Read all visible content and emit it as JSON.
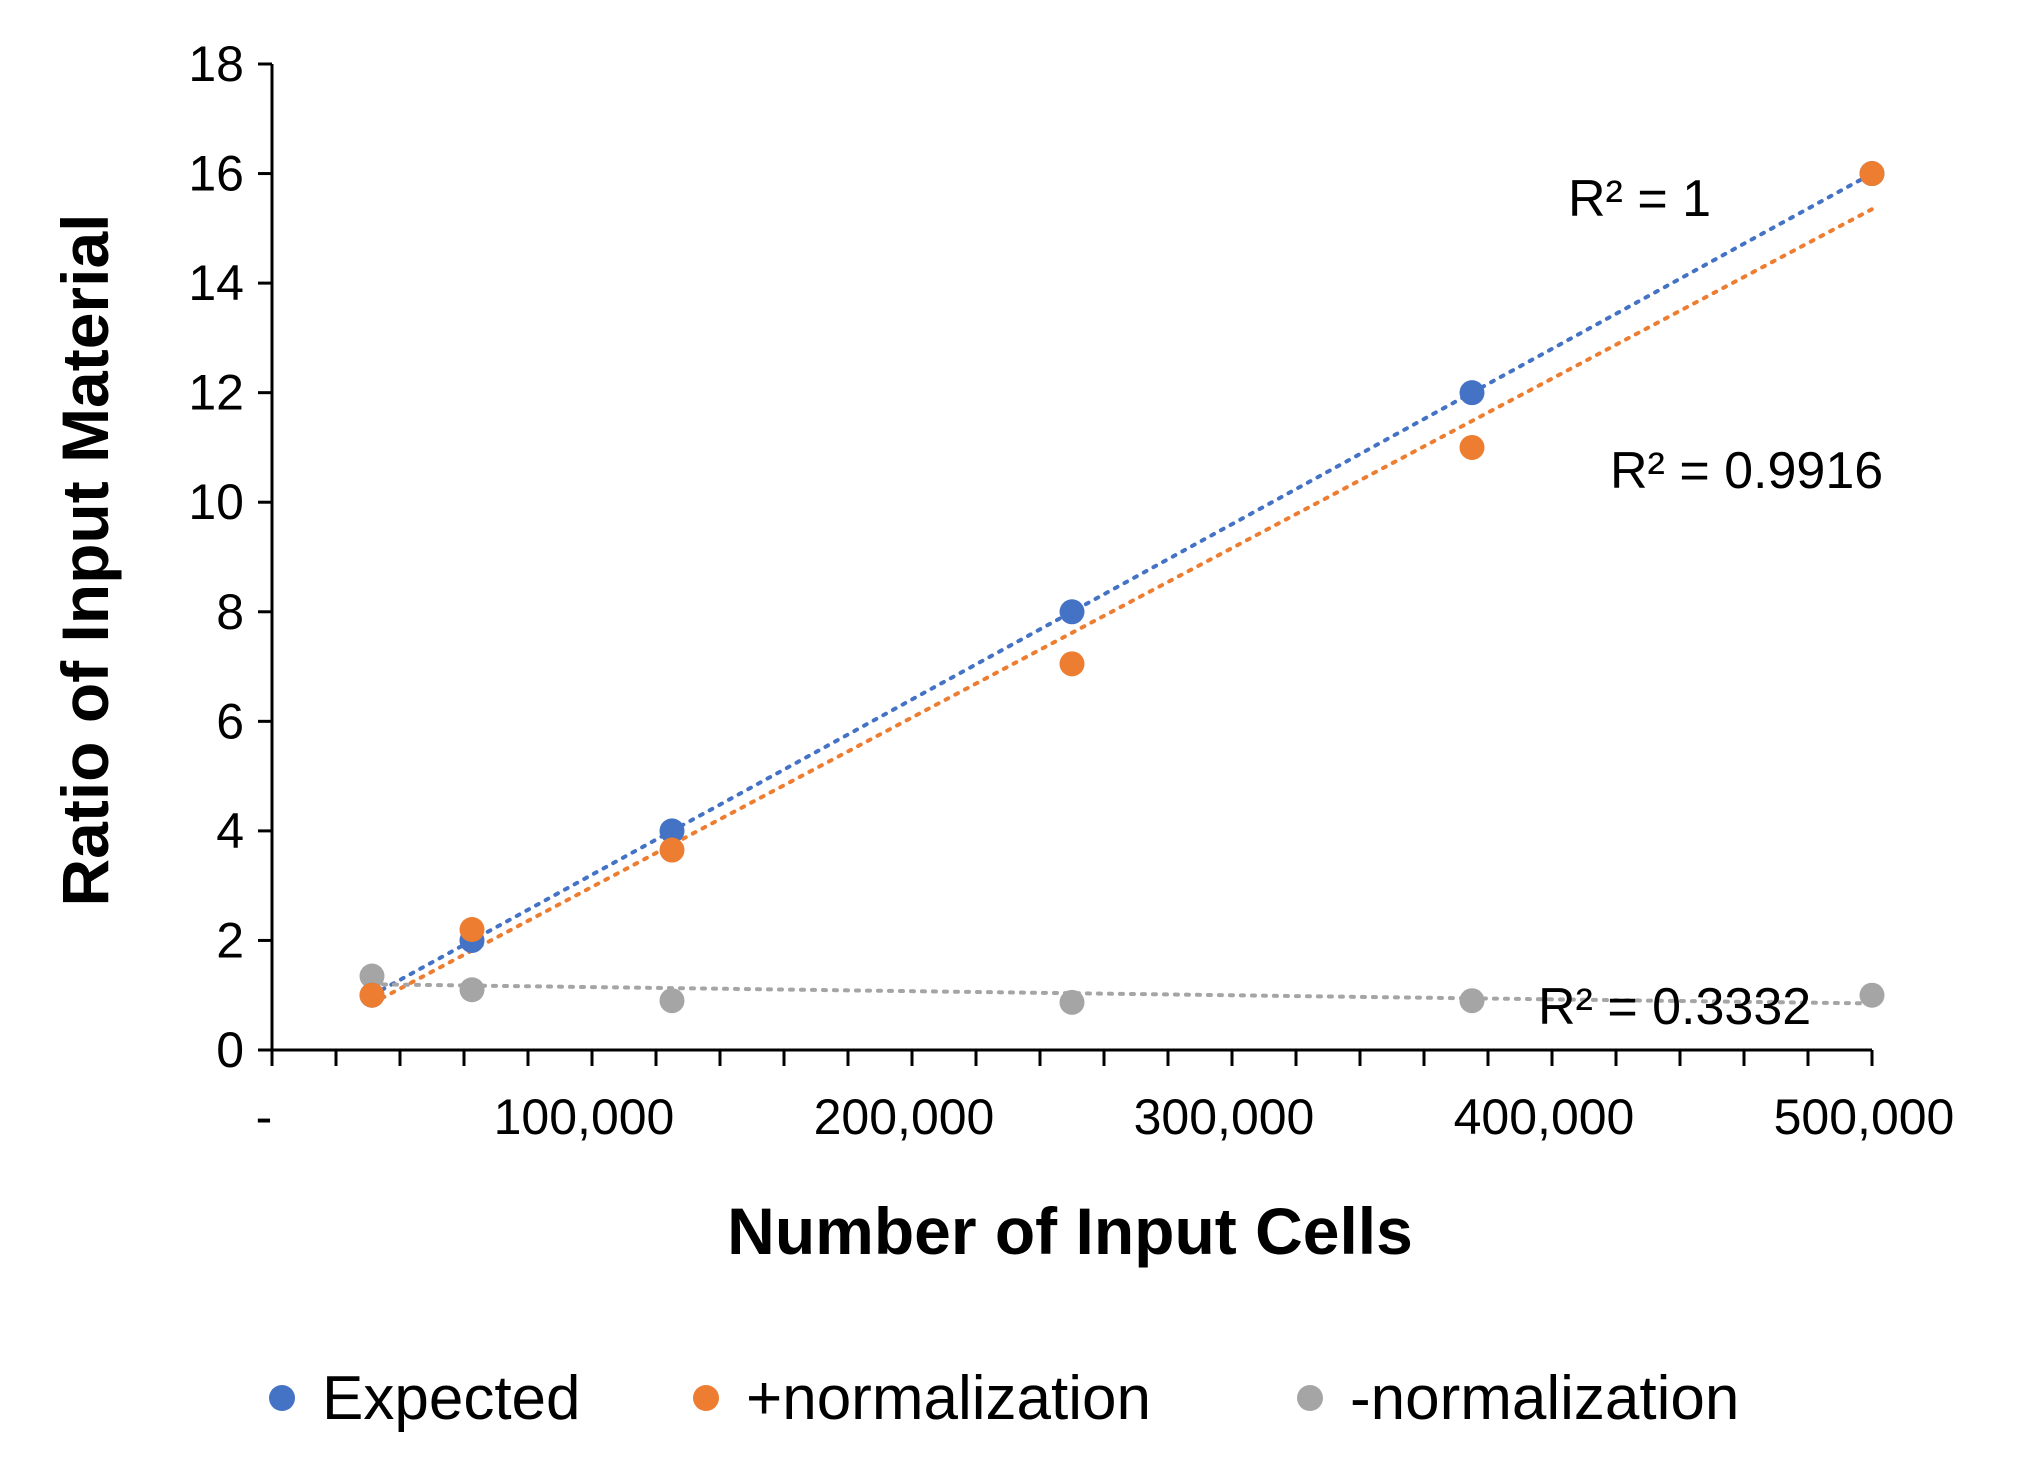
{
  "chart_data": {
    "type": "scatter",
    "title": "",
    "xlabel": "Number of Input Cells",
    "ylabel": "Ratio of Input Material",
    "xlim": [
      0,
      500000
    ],
    "ylim": [
      0,
      18
    ],
    "x_ticks": [
      0,
      100000,
      200000,
      300000,
      400000,
      500000
    ],
    "x_tick_labels": [
      "-",
      "100,000",
      "200,000",
      "300,000",
      "400,000",
      "500,000"
    ],
    "y_ticks": [
      0,
      2,
      4,
      6,
      8,
      10,
      12,
      14,
      16,
      18
    ],
    "y_tick_labels": [
      "0",
      "2",
      "4",
      "6",
      "8",
      "10",
      "12",
      "14",
      "16",
      "18"
    ],
    "grid": false,
    "legend_position": "bottom",
    "x": [
      31250,
      62500,
      125000,
      250000,
      375000,
      500000
    ],
    "series": [
      {
        "name": "Expected",
        "color": "#4472C4",
        "values": [
          1,
          2,
          4,
          8,
          12,
          16
        ],
        "trendline": {
          "type": "linear",
          "x_range": [
            31250,
            500000
          ],
          "y_range": [
            1.0,
            16.0
          ],
          "r2_label": "R² = 1"
        }
      },
      {
        "name": "+normalization",
        "color": "#ED7D31",
        "values": [
          1.0,
          2.2,
          3.65,
          7.05,
          11.0,
          16.0
        ],
        "trendline": {
          "type": "linear",
          "x_range": [
            31250,
            500000
          ],
          "y_range": [
            0.85,
            15.35
          ],
          "r2_label": "R² = 0.9916"
        }
      },
      {
        "name": "-normalization",
        "color": "#A5A5A5",
        "values": [
          1.35,
          1.1,
          0.9,
          0.87,
          0.9,
          1.0
        ],
        "trendline": {
          "type": "linear",
          "x_range": [
            31250,
            500000
          ],
          "y_range": [
            1.2,
            0.85
          ],
          "r2_label": "R² = 0.3332"
        }
      }
    ]
  }
}
